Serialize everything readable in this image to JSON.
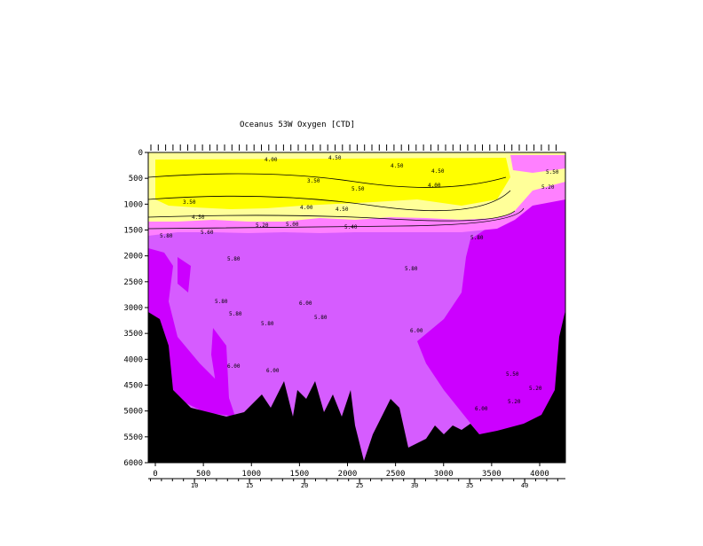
{
  "chart_data": {
    "type": "contour",
    "title": "Oceanus 53W Oxygen [CTD]",
    "ylim": [
      0,
      6000
    ],
    "yticks": [
      0,
      500,
      1000,
      1500,
      2000,
      2500,
      3000,
      3500,
      4000,
      4500,
      5000,
      5500,
      6000
    ],
    "xlim": [
      -74,
      4268
    ],
    "xticks": [
      0,
      500,
      1000,
      1500,
      2000,
      2500,
      3000,
      3500,
      4000
    ],
    "x2lim": [
      5.8,
      43.7
    ],
    "x2ticks": [
      10,
      15,
      20,
      25,
      30,
      35,
      40
    ],
    "contour_labels": [
      "4.00",
      "4.50",
      "4.50",
      "4.50",
      "3.50",
      "5.50",
      "4.00",
      "4.50",
      "4.00",
      "3.50",
      "5.50",
      "5.20",
      "4.50",
      "5.20",
      "5.00",
      "5.40",
      "5.60",
      "5.80",
      "5.80",
      "5.80",
      "5.80",
      "5.80",
      "5.80",
      "6.00",
      "5.80",
      "6.00",
      "6.00",
      "5.80",
      "6.00",
      "6.00",
      "5.20",
      "5.20",
      "5.50"
    ]
  }
}
